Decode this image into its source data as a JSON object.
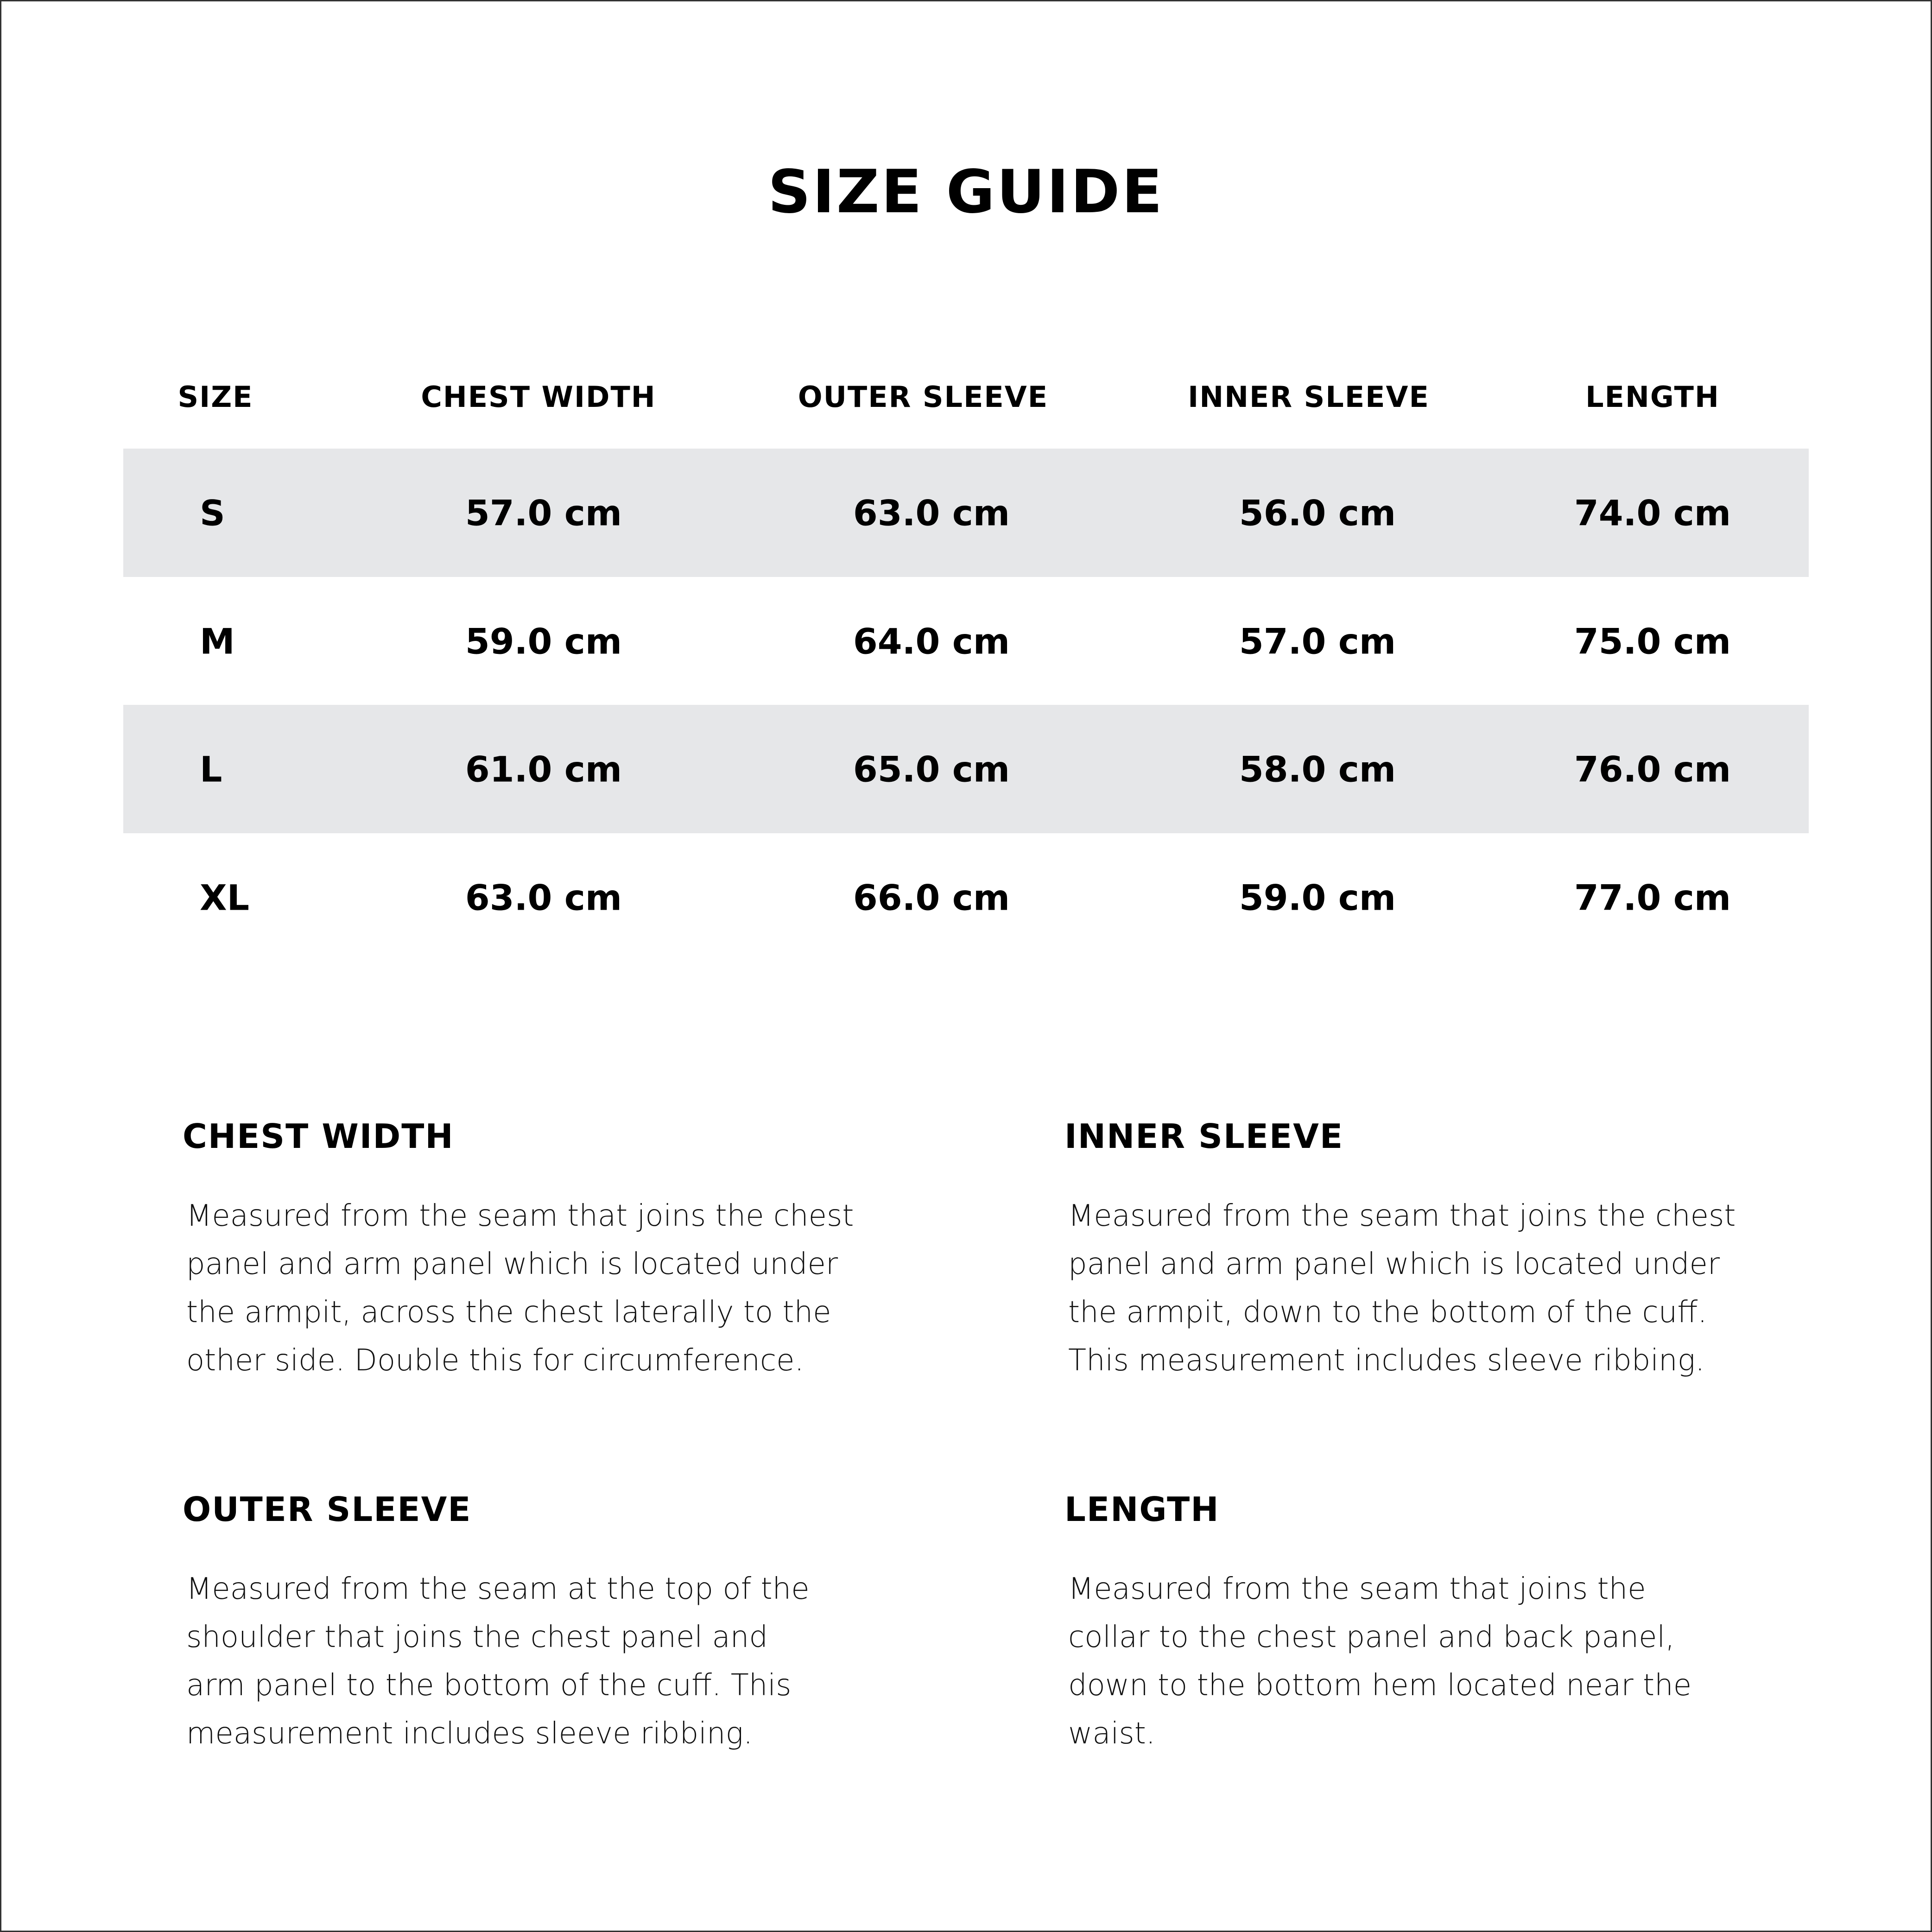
{
  "title": "SIZE GUIDE",
  "table": {
    "headers": [
      "SIZE",
      "CHEST WIDTH",
      "OUTER SLEEVE",
      "INNER SLEEVE",
      "LENGTH"
    ],
    "rows": [
      [
        "S",
        "57.0 cm",
        "63.0 cm",
        "56.0 cm",
        "74.0 cm"
      ],
      [
        "M",
        "59.0 cm",
        "64.0 cm",
        "57.0 cm",
        "75.0 cm"
      ],
      [
        "L",
        "61.0 cm",
        "65.0 cm",
        "58.0 cm",
        "76.0 cm"
      ],
      [
        "XL",
        "63.0 cm",
        "66.0 cm",
        "59.0 cm",
        "77.0 cm"
      ]
    ],
    "shade_color": "#e6e7e9"
  },
  "sections": [
    {
      "heading": "CHEST WIDTH",
      "body": "Measured from the seam that joins the chest panel and arm panel which is located under the armpit, across the chest laterally to the other side. Double this for circumference."
    },
    {
      "heading": "INNER SLEEVE",
      "body": "Measured from the seam that joins the chest panel and arm panel which is located under the armpit, down to the bottom of the cuff. This measurement includes sleeve ribbing."
    },
    {
      "heading": "OUTER SLEEVE",
      "body": "Measured from the seam at the top of the shoulder that joins the chest panel and arm panel to the bottom of the cuff. This measurement includes sleeve ribbing."
    },
    {
      "heading": "LENGTH",
      "body": "Measured from the seam that joins the collar to the chest panel and back panel, down to the bottom hem located near the waist."
    }
  ]
}
